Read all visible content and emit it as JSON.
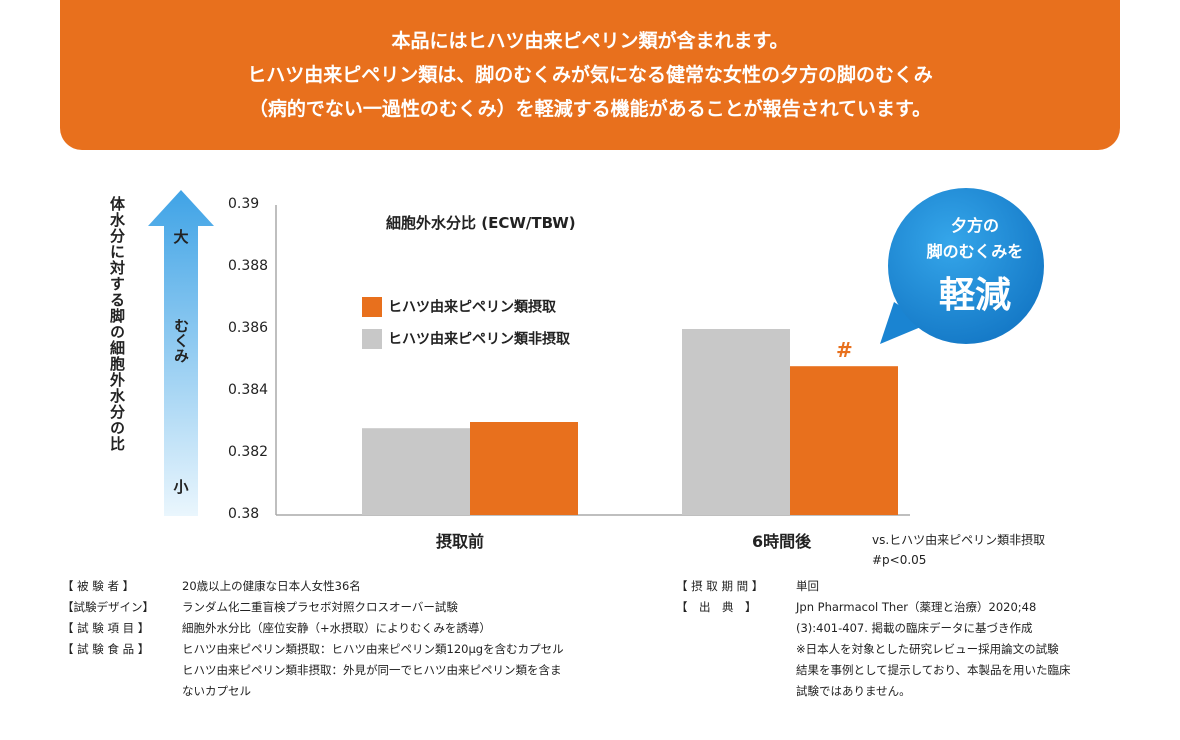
{
  "banner": {
    "line1": "本品にはヒハツ由来ピペリン類が含まれます。",
    "line2": "ヒハツ由来ピペリン類は、脚のむくみが気になる健常な女性の夕方の脚のむくみ",
    "line3": "（病的でない一過性のむくみ）を軽減する機能があることが報告されています。"
  },
  "y_axis_label": "体水分に対する脚の細胞外水分の比",
  "arrow": {
    "top": "大",
    "middle": "むくみ",
    "bottom": "小"
  },
  "colors": {
    "orange": "#e8701d",
    "gray": "#c8c8c8",
    "blue": "#1e88d6"
  },
  "chart_data": {
    "type": "bar",
    "title": "細胞外水分比 (ECW/TBW)",
    "categories": [
      "摂取前",
      "6時間後"
    ],
    "series": [
      {
        "name": "ヒハツ由来ピペリン類非摂取",
        "color": "#c8c8c8",
        "values": [
          0.3828,
          0.386
        ]
      },
      {
        "name": "ヒハツ由来ピペリン類摂取",
        "color": "#e8701d",
        "values": [
          0.383,
          0.3848
        ]
      }
    ],
    "ylim": [
      0.38,
      0.39
    ],
    "yticks": [
      "0.38",
      "0.382",
      "0.384",
      "0.386",
      "0.388",
      "0.39"
    ],
    "annotation": "#",
    "note_line1": "vs.ヒハツ由来ピペリン類非摂取",
    "note_line2": "#p<0.05"
  },
  "legend": {
    "intake": "ヒハツ由来ピペリン類摂取",
    "non_intake": "ヒハツ由来ピペリン類非摂取"
  },
  "bubble": {
    "line1": "夕方の",
    "line2": "脚のむくみを",
    "line3": "軽減"
  },
  "study_info": {
    "left": [
      {
        "key": "【 被 験 者 】",
        "value": "20歳以上の健康な日本人女性36名"
      },
      {
        "key": "【試験デザイン】",
        "value": "ランダム化二重盲検プラセボ対照クロスオーバー試験"
      },
      {
        "key": "【 試 験 項 目 】",
        "value": "細胞外水分比（座位安静（+水摂取）によりむくみを誘導）"
      },
      {
        "key": "【 試 験 食 品 】",
        "value": "ヒハツ由来ピペリン類摂取：ヒハツ由来ピペリン類120μgを含むカプセル"
      },
      {
        "key": "",
        "value": "ヒハツ由来ピペリン類非摂取：外見が同一でヒハツ由来ピペリン類を含ま"
      },
      {
        "key": "",
        "value": "ないカプセル"
      }
    ],
    "right": [
      {
        "key": "【 摂 取 期 間 】",
        "value": "単回"
      },
      {
        "key": "【　出　典　】",
        "value": "Jpn Pharmacol Ther（薬理と治療）2020;48"
      },
      {
        "key": "",
        "value": "(3):401-407. 掲載の臨床データに基づき作成"
      },
      {
        "key": "",
        "value": "※日本人を対象とした研究レビュー採用論文の試験"
      },
      {
        "key": "",
        "value": "結果を事例として提示しており、本製品を用いた臨床"
      },
      {
        "key": "",
        "value": "試験ではありません。"
      }
    ]
  }
}
